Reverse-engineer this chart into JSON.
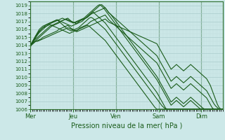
{
  "xlabel": "Pression niveau de la mer( hPa )",
  "ylim": [
    1006,
    1019.5
  ],
  "yticks": [
    1006,
    1007,
    1008,
    1009,
    1010,
    1011,
    1012,
    1013,
    1014,
    1015,
    1016,
    1017,
    1018,
    1019
  ],
  "day_labels": [
    "Mer",
    "Jeu",
    "Ven",
    "Sam",
    "Dim"
  ],
  "day_positions": [
    0,
    24,
    48,
    72,
    96
  ],
  "xlim": [
    0,
    108
  ],
  "bg_color": "#cce8e8",
  "grid_color_major": "#aacccc",
  "grid_color_minor": "#c0dddd",
  "line_color": "#1a5c1a",
  "border_color": "#2d6e2d",
  "label_color": "#1a5c1a",
  "n_hours": 109,
  "series": [
    [
      1014.0,
      1014.2,
      1014.4,
      1014.5,
      1014.5,
      1014.6,
      1014.7,
      1014.8,
      1014.9,
      1015.0,
      1015.1,
      1015.2,
      1015.3,
      1015.4,
      1015.5,
      1015.6,
      1015.7,
      1015.8,
      1015.9,
      1016.0,
      1016.1,
      1016.2,
      1016.1,
      1016.0,
      1015.9,
      1015.8,
      1015.7,
      1015.8,
      1015.9,
      1016.0,
      1016.1,
      1016.2,
      1016.3,
      1016.4,
      1016.5,
      1016.6,
      1016.7,
      1016.8,
      1016.9,
      1017.0,
      1017.1,
      1017.2,
      1017.3,
      1017.1,
      1016.9,
      1016.8,
      1016.7,
      1016.6,
      1016.5,
      1016.4,
      1016.3,
      1016.2,
      1016.1,
      1016.0,
      1015.9,
      1015.8,
      1015.7,
      1015.6,
      1015.5,
      1015.4,
      1015.3,
      1015.2,
      1015.1,
      1015.0,
      1014.9,
      1014.8,
      1014.7,
      1014.6,
      1014.5,
      1014.4,
      1014.3,
      1014.2,
      1013.8,
      1013.4,
      1013.0,
      1012.6,
      1012.2,
      1011.8,
      1011.4,
      1011.0,
      1011.2,
      1011.4,
      1011.6,
      1011.4,
      1011.2,
      1011.0,
      1010.8,
      1011.0,
      1011.2,
      1011.4,
      1011.6,
      1011.4,
      1011.2,
      1011.0,
      1010.8,
      1010.6,
      1010.4,
      1010.2,
      1010.0,
      1009.8,
      1009.4,
      1009.0,
      1008.4,
      1007.8,
      1007.2,
      1006.6,
      1006.2,
      1006.0,
      1006.0
    ],
    [
      1014.0,
      1014.1,
      1014.3,
      1014.5,
      1014.6,
      1014.7,
      1014.8,
      1015.0,
      1015.1,
      1015.2,
      1015.3,
      1015.4,
      1015.5,
      1015.6,
      1015.7,
      1015.8,
      1016.0,
      1016.1,
      1016.2,
      1016.3,
      1016.4,
      1016.5,
      1016.3,
      1016.1,
      1016.0,
      1015.9,
      1015.8,
      1016.0,
      1016.2,
      1016.3,
      1016.4,
      1016.5,
      1016.6,
      1016.8,
      1017.0,
      1017.1,
      1017.2,
      1017.3,
      1017.4,
      1017.5,
      1017.6,
      1017.7,
      1017.8,
      1017.5,
      1017.2,
      1017.0,
      1016.8,
      1016.6,
      1016.4,
      1016.2,
      1016.0,
      1015.8,
      1015.6,
      1015.4,
      1015.2,
      1015.0,
      1014.8,
      1014.6,
      1014.4,
      1014.2,
      1014.0,
      1013.8,
      1013.6,
      1013.4,
      1013.2,
      1013.0,
      1012.8,
      1012.6,
      1012.4,
      1012.2,
      1012.0,
      1011.8,
      1011.4,
      1011.0,
      1010.6,
      1010.2,
      1009.8,
      1009.4,
      1009.0,
      1008.6,
      1008.8,
      1009.0,
      1009.2,
      1009.0,
      1008.8,
      1008.6,
      1008.4,
      1008.6,
      1008.8,
      1009.0,
      1009.2,
      1009.0,
      1008.8,
      1008.6,
      1008.4,
      1008.2,
      1008.0,
      1007.8,
      1007.6,
      1007.4,
      1007.0,
      1006.6,
      1006.2,
      1006.0,
      1006.0,
      1006.0,
      1006.0,
      1006.0,
      1006.0
    ],
    [
      1014.0,
      1014.2,
      1014.4,
      1014.6,
      1014.8,
      1015.0,
      1015.2,
      1015.4,
      1015.6,
      1015.8,
      1016.0,
      1016.2,
      1016.4,
      1016.5,
      1016.6,
      1016.7,
      1016.8,
      1017.0,
      1017.1,
      1017.2,
      1017.3,
      1017.4,
      1017.2,
      1017.0,
      1016.9,
      1016.8,
      1016.7,
      1016.9,
      1017.1,
      1017.2,
      1017.3,
      1017.4,
      1017.5,
      1017.7,
      1017.9,
      1018.0,
      1018.1,
      1018.2,
      1018.3,
      1018.4,
      1018.5,
      1018.6,
      1018.7,
      1018.4,
      1018.1,
      1017.9,
      1017.7,
      1017.5,
      1017.3,
      1017.1,
      1016.9,
      1016.7,
      1016.5,
      1016.3,
      1016.1,
      1015.9,
      1015.7,
      1015.5,
      1015.3,
      1015.1,
      1014.9,
      1014.7,
      1014.5,
      1014.3,
      1014.1,
      1013.9,
      1013.7,
      1013.5,
      1013.3,
      1013.1,
      1012.9,
      1012.7,
      1012.3,
      1011.9,
      1011.5,
      1011.1,
      1010.7,
      1010.3,
      1009.9,
      1009.5,
      1009.7,
      1009.9,
      1010.1,
      1009.9,
      1009.7,
      1009.5,
      1009.3,
      1009.5,
      1009.7,
      1009.9,
      1010.1,
      1009.9,
      1009.7,
      1009.5,
      1009.3,
      1009.1,
      1008.9,
      1008.7,
      1008.5,
      1008.3,
      1007.9,
      1007.5,
      1007.1,
      1006.7,
      1006.4,
      1006.2,
      1006.0,
      1006.0,
      1006.0
    ],
    [
      1014.0,
      1014.3,
      1014.6,
      1014.8,
      1015.0,
      1015.2,
      1015.4,
      1015.6,
      1015.8,
      1016.0,
      1016.2,
      1016.4,
      1016.5,
      1016.6,
      1016.7,
      1016.8,
      1016.9,
      1017.0,
      1017.1,
      1017.2,
      1017.3,
      1017.2,
      1017.1,
      1017.0,
      1016.9,
      1016.8,
      1016.9,
      1017.0,
      1017.1,
      1017.2,
      1017.3,
      1017.4,
      1017.6,
      1017.8,
      1018.0,
      1018.2,
      1018.4,
      1018.6,
      1018.8,
      1019.0,
      1019.1,
      1018.9,
      1018.7,
      1018.4,
      1018.1,
      1017.9,
      1017.6,
      1017.3,
      1017.0,
      1016.7,
      1016.4,
      1016.1,
      1015.8,
      1015.5,
      1015.2,
      1014.9,
      1014.6,
      1014.3,
      1014.0,
      1013.7,
      1013.4,
      1013.1,
      1012.8,
      1012.5,
      1012.2,
      1011.9,
      1011.6,
      1011.3,
      1011.0,
      1010.7,
      1010.4,
      1010.1,
      1009.7,
      1009.3,
      1008.9,
      1008.5,
      1008.1,
      1007.7,
      1007.3,
      1006.9,
      1007.1,
      1007.3,
      1007.5,
      1007.3,
      1007.1,
      1006.9,
      1006.7,
      1006.9,
      1007.1,
      1007.3,
      1007.5,
      1007.3,
      1007.1,
      1006.9,
      1006.7,
      1006.5,
      1006.3,
      1006.1,
      1006.0,
      1006.0,
      1006.0,
      1006.0,
      1006.0,
      1006.0,
      1006.0,
      1006.0,
      1006.0,
      1006.0,
      1006.0
    ],
    [
      1014.0,
      1014.3,
      1014.6,
      1015.0,
      1015.3,
      1015.6,
      1015.8,
      1016.0,
      1016.2,
      1016.4,
      1016.6,
      1016.7,
      1016.8,
      1016.9,
      1017.0,
      1017.1,
      1017.2,
      1017.3,
      1017.4,
      1017.3,
      1017.2,
      1017.1,
      1017.0,
      1016.9,
      1016.8,
      1016.9,
      1017.0,
      1017.1,
      1017.2,
      1017.3,
      1017.4,
      1017.6,
      1017.8,
      1018.0,
      1018.2,
      1018.4,
      1018.6,
      1018.8,
      1019.0,
      1019.1,
      1018.9,
      1018.7,
      1018.4,
      1018.1,
      1017.8,
      1017.5,
      1017.2,
      1016.9,
      1016.6,
      1016.3,
      1016.0,
      1015.7,
      1015.4,
      1015.1,
      1014.8,
      1014.5,
      1014.2,
      1013.9,
      1013.6,
      1013.3,
      1013.0,
      1012.7,
      1012.4,
      1012.1,
      1011.8,
      1011.5,
      1011.2,
      1010.9,
      1010.6,
      1010.3,
      1010.0,
      1009.7,
      1009.3,
      1008.9,
      1008.5,
      1008.1,
      1007.7,
      1007.3,
      1006.9,
      1006.5,
      1006.7,
      1006.9,
      1007.1,
      1006.9,
      1006.7,
      1006.5,
      1006.3,
      1006.5,
      1006.7,
      1006.9,
      1007.1,
      1006.9,
      1006.7,
      1006.5,
      1006.3,
      1006.1,
      1006.0,
      1006.0,
      1006.0,
      1006.0,
      1006.0,
      1006.0,
      1006.0,
      1006.0,
      1006.0,
      1006.0,
      1006.0,
      1006.0,
      1006.0
    ],
    [
      1014.0,
      1014.4,
      1014.8,
      1015.2,
      1015.5,
      1015.8,
      1016.0,
      1016.2,
      1016.4,
      1016.6,
      1016.7,
      1016.8,
      1016.9,
      1017.0,
      1017.1,
      1017.2,
      1017.1,
      1017.0,
      1016.9,
      1016.8,
      1016.7,
      1016.6,
      1016.5,
      1016.4,
      1016.5,
      1016.6,
      1016.7,
      1016.8,
      1016.9,
      1017.0,
      1017.2,
      1017.4,
      1017.6,
      1017.8,
      1018.0,
      1018.2,
      1018.0,
      1017.8,
      1017.6,
      1017.4,
      1017.2,
      1017.0,
      1016.8,
      1016.5,
      1016.2,
      1015.9,
      1015.6,
      1015.3,
      1015.0,
      1014.7,
      1014.4,
      1014.1,
      1013.8,
      1013.5,
      1013.2,
      1012.9,
      1012.6,
      1012.3,
      1012.0,
      1011.7,
      1011.4,
      1011.1,
      1010.8,
      1010.5,
      1010.2,
      1009.9,
      1009.6,
      1009.3,
      1009.0,
      1008.7,
      1008.4,
      1008.1,
      1007.7,
      1007.3,
      1006.9,
      1006.5,
      1006.1,
      1006.0,
      1006.0,
      1006.0,
      1006.0,
      1006.0,
      1006.0,
      1006.0,
      1006.0,
      1006.0,
      1006.0,
      1006.0,
      1006.0,
      1006.0,
      1006.0,
      1006.0,
      1006.0,
      1006.0,
      1006.0,
      1006.0,
      1006.0,
      1006.0,
      1006.0,
      1006.0,
      1006.0,
      1006.0,
      1006.0,
      1006.0,
      1006.0,
      1006.0,
      1006.0,
      1006.0,
      1006.0
    ],
    [
      1014.0,
      1014.4,
      1014.8,
      1015.2,
      1015.6,
      1016.0,
      1016.2,
      1016.4,
      1016.5,
      1016.6,
      1016.7,
      1016.8,
      1016.9,
      1017.0,
      1017.1,
      1017.2,
      1017.0,
      1016.8,
      1016.6,
      1016.4,
      1016.2,
      1016.0,
      1015.9,
      1015.8,
      1015.9,
      1016.0,
      1016.1,
      1016.2,
      1016.4,
      1016.6,
      1016.8,
      1017.0,
      1017.2,
      1017.4,
      1017.5,
      1017.4,
      1017.2,
      1017.0,
      1016.8,
      1016.6,
      1016.4,
      1016.2,
      1016.0,
      1015.7,
      1015.4,
      1015.1,
      1014.8,
      1014.5,
      1014.2,
      1013.9,
      1013.6,
      1013.3,
      1013.0,
      1012.7,
      1012.4,
      1012.1,
      1011.8,
      1011.5,
      1011.2,
      1010.9,
      1010.6,
      1010.3,
      1010.0,
      1009.7,
      1009.4,
      1009.1,
      1008.8,
      1008.5,
      1008.2,
      1007.9,
      1007.6,
      1007.3,
      1007.0,
      1006.7,
      1006.4,
      1006.2,
      1006.0,
      1006.0,
      1006.0,
      1006.0,
      1006.0,
      1006.0,
      1006.0,
      1006.0,
      1006.0,
      1006.0,
      1006.0,
      1006.0,
      1006.0,
      1006.0,
      1006.0,
      1006.0,
      1006.0,
      1006.0,
      1006.0,
      1006.0,
      1006.0,
      1006.0,
      1006.0,
      1006.0,
      1006.0,
      1006.0,
      1006.0,
      1006.0,
      1006.0,
      1006.0,
      1006.0,
      1006.0,
      1006.0
    ],
    [
      1013.8,
      1014.2,
      1014.6,
      1015.0,
      1015.4,
      1015.7,
      1016.0,
      1016.2,
      1016.3,
      1016.4,
      1016.5,
      1016.6,
      1016.5,
      1016.4,
      1016.3,
      1016.2,
      1016.1,
      1016.0,
      1015.9,
      1015.8,
      1015.7,
      1015.6,
      1015.5,
      1015.6,
      1015.7,
      1015.8,
      1015.9,
      1016.0,
      1016.1,
      1016.2,
      1016.3,
      1016.4,
      1016.5,
      1016.4,
      1016.2,
      1016.0,
      1015.8,
      1015.6,
      1015.4,
      1015.2,
      1015.0,
      1014.8,
      1014.6,
      1014.3,
      1014.0,
      1013.7,
      1013.4,
      1013.1,
      1012.8,
      1012.5,
      1012.2,
      1011.9,
      1011.6,
      1011.3,
      1011.0,
      1010.7,
      1010.4,
      1010.1,
      1009.8,
      1009.5,
      1009.2,
      1008.9,
      1008.6,
      1008.3,
      1008.0,
      1007.7,
      1007.4,
      1007.1,
      1006.8,
      1006.5,
      1006.2,
      1006.0,
      1006.0,
      1006.0,
      1006.0,
      1006.0,
      1006.0,
      1006.0,
      1006.0,
      1006.0,
      1006.0,
      1006.0,
      1006.0,
      1006.0,
      1006.0,
      1006.0,
      1006.0,
      1006.0,
      1006.0,
      1006.0,
      1006.0,
      1006.0,
      1006.0,
      1006.0,
      1006.0,
      1006.0,
      1006.0,
      1006.0,
      1006.0,
      1006.0,
      1006.0,
      1006.0,
      1006.0,
      1006.0,
      1006.0,
      1006.0,
      1006.0,
      1006.0,
      1006.0
    ]
  ]
}
